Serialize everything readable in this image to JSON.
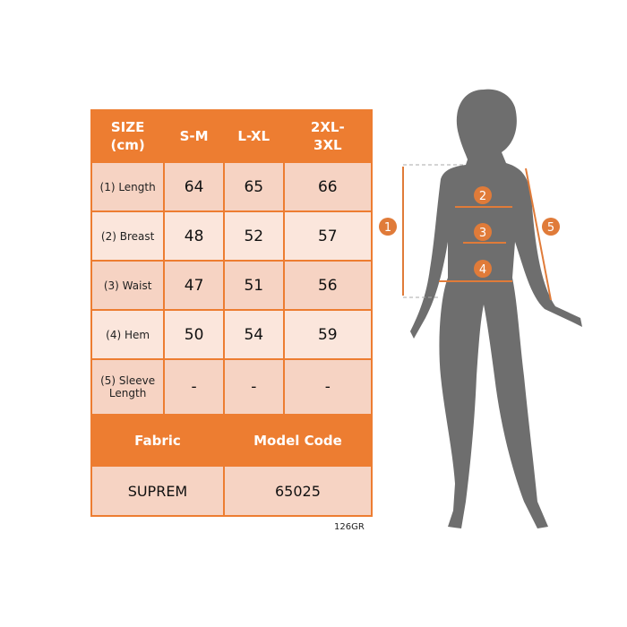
{
  "header": {
    "size": "SIZE (cm)",
    "cols": [
      "S-M",
      "L-XL",
      "2XL-3XL"
    ]
  },
  "rows": [
    {
      "label": "(1) Length",
      "values": [
        "64",
        "65",
        "66"
      ]
    },
    {
      "label": "(2) Breast",
      "values": [
        "48",
        "52",
        "57"
      ]
    },
    {
      "label": "(3) Waist",
      "values": [
        "47",
        "51",
        "56"
      ]
    },
    {
      "label": "(4) Hem",
      "values": [
        "50",
        "54",
        "59"
      ]
    },
    {
      "label": "(5) Sleeve Length",
      "values": [
        "-",
        "-",
        "-"
      ]
    }
  ],
  "footer": {
    "fabric_label": "Fabric",
    "model_label": "Model Code",
    "fabric": "SUPREM",
    "model": "65025"
  },
  "product_code": "126GR",
  "markers": [
    "1",
    "2",
    "3",
    "4",
    "5"
  ],
  "colors": {
    "accent": "#ED7D31",
    "figure": "#6E6E6E"
  }
}
